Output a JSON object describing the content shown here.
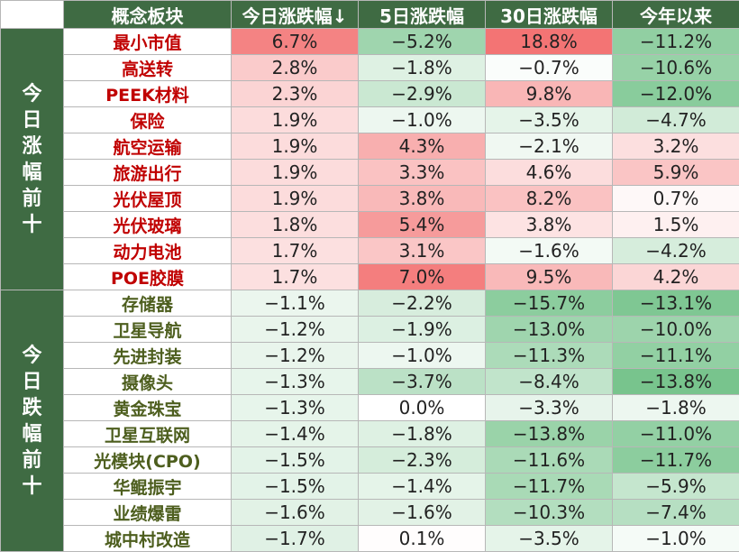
{
  "chart_data": {
    "type": "table",
    "columns": [
      "概念板块",
      "今日涨跌幅↓",
      "5日涨跌幅",
      "30日涨跌幅",
      "今年以来"
    ],
    "groups": [
      {
        "label": "今日涨幅前十",
        "chars": [
          "今",
          "日",
          "涨",
          "幅",
          "前",
          "十"
        ],
        "name_color": "#c00000",
        "rows": [
          {
            "name": "最小市值",
            "values": [
              "6.7%",
              "−5.2%",
              "18.8%",
              "−11.2%"
            ],
            "nums": [
              6.7,
              -5.2,
              18.8,
              -11.2
            ]
          },
          {
            "name": "高送转",
            "values": [
              "2.8%",
              "−1.8%",
              "−0.7%",
              "−10.6%"
            ],
            "nums": [
              2.8,
              -1.8,
              -0.7,
              -10.6
            ]
          },
          {
            "name": "PEEK材料",
            "values": [
              "2.3%",
              "−2.9%",
              "9.8%",
              "−12.0%"
            ],
            "nums": [
              2.3,
              -2.9,
              9.8,
              -12.0
            ]
          },
          {
            "name": "保险",
            "values": [
              "1.9%",
              "−1.0%",
              "−3.5%",
              "−4.7%"
            ],
            "nums": [
              1.9,
              -1.0,
              -3.5,
              -4.7
            ]
          },
          {
            "name": "航空运输",
            "values": [
              "1.9%",
              "4.3%",
              "−2.1%",
              "3.2%"
            ],
            "nums": [
              1.9,
              4.3,
              -2.1,
              3.2
            ]
          },
          {
            "name": "旅游出行",
            "values": [
              "1.9%",
              "3.3%",
              "4.6%",
              "5.9%"
            ],
            "nums": [
              1.9,
              3.3,
              4.6,
              5.9
            ]
          },
          {
            "name": "光伏屋顶",
            "values": [
              "1.9%",
              "3.8%",
              "8.2%",
              "0.7%"
            ],
            "nums": [
              1.9,
              3.8,
              8.2,
              0.7
            ]
          },
          {
            "name": "光伏玻璃",
            "values": [
              "1.8%",
              "5.4%",
              "3.8%",
              "1.5%"
            ],
            "nums": [
              1.8,
              5.4,
              3.8,
              1.5
            ]
          },
          {
            "name": "动力电池",
            "values": [
              "1.7%",
              "3.1%",
              "−1.6%",
              "−4.2%"
            ],
            "nums": [
              1.7,
              3.1,
              -1.6,
              -4.2
            ]
          },
          {
            "name": "POE胶膜",
            "values": [
              "1.7%",
              "7.0%",
              "9.5%",
              "4.2%"
            ],
            "nums": [
              1.7,
              7.0,
              9.5,
              4.2
            ]
          }
        ]
      },
      {
        "label": "今日跌幅前十",
        "chars": [
          "今",
          "日",
          "跌",
          "幅",
          "前",
          "十"
        ],
        "name_color": "#4d5e1e",
        "rows": [
          {
            "name": "存储器",
            "values": [
              "−1.1%",
              "−2.2%",
              "−15.7%",
              "−13.1%"
            ],
            "nums": [
              -1.1,
              -2.2,
              -15.7,
              -13.1
            ]
          },
          {
            "name": "卫星导航",
            "values": [
              "−1.2%",
              "−1.9%",
              "−13.0%",
              "−10.0%"
            ],
            "nums": [
              -1.2,
              -1.9,
              -13.0,
              -10.0
            ]
          },
          {
            "name": "先进封装",
            "values": [
              "−1.2%",
              "−1.0%",
              "−11.3%",
              "−11.1%"
            ],
            "nums": [
              -1.2,
              -1.0,
              -11.3,
              -11.1
            ]
          },
          {
            "name": "摄像头",
            "values": [
              "−1.3%",
              "−3.7%",
              "−8.4%",
              "−13.8%"
            ],
            "nums": [
              -1.3,
              -3.7,
              -8.4,
              -13.8
            ]
          },
          {
            "name": "黄金珠宝",
            "values": [
              "−1.3%",
              "0.0%",
              "−3.3%",
              "−1.8%"
            ],
            "nums": [
              -1.3,
              0.0,
              -3.3,
              -1.8
            ]
          },
          {
            "name": "卫星互联网",
            "values": [
              "−1.4%",
              "−1.8%",
              "−13.8%",
              "−11.0%"
            ],
            "nums": [
              -1.4,
              -1.8,
              -13.8,
              -11.0
            ]
          },
          {
            "name": "光模块(CPO)",
            "values": [
              "−1.5%",
              "−2.3%",
              "−11.6%",
              "−11.7%"
            ],
            "nums": [
              -1.5,
              -2.3,
              -11.6,
              -11.7
            ]
          },
          {
            "name": "华鲲振宇",
            "values": [
              "−1.5%",
              "−1.4%",
              "−11.7%",
              "−5.9%"
            ],
            "nums": [
              -1.5,
              -1.4,
              -11.7,
              -5.9
            ]
          },
          {
            "name": "业绩爆雷",
            "values": [
              "−1.6%",
              "−1.6%",
              "−10.3%",
              "−7.4%"
            ],
            "nums": [
              -1.6,
              -1.6,
              -10.3,
              -7.4
            ]
          },
          {
            "name": "城中村改造",
            "values": [
              "−1.7%",
              "0.1%",
              "−3.5%",
              "−1.0%"
            ],
            "nums": [
              -1.7,
              0.1,
              -3.5,
              -1.0
            ]
          }
        ]
      }
    ],
    "colors": {
      "header_bg": "#3f6b43",
      "positive_max": "#f26b6b",
      "negative_max": "#6cbf83",
      "neutral": "#ffffff"
    }
  }
}
